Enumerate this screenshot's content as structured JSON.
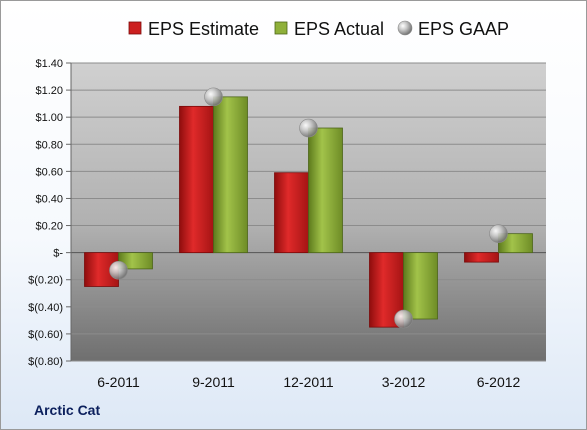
{
  "company_label": "Arctic Cat",
  "chart_data": {
    "type": "bar",
    "title": "",
    "xlabel": "",
    "ylabel": "",
    "categories": [
      "6-2011",
      "9-2011",
      "12-2011",
      "3-2012",
      "6-2012"
    ],
    "series": [
      {
        "name": "EPS Estimate",
        "kind": "bar",
        "color": "#cc1f1f",
        "values": [
          -0.25,
          1.08,
          0.59,
          -0.55,
          -0.07
        ]
      },
      {
        "name": "EPS Actual",
        "kind": "bar",
        "color": "#8fb03a",
        "values": [
          -0.12,
          1.15,
          0.92,
          -0.49,
          0.14
        ]
      },
      {
        "name": "EPS GAAP",
        "kind": "marker",
        "color": "#b8b8b8",
        "values": [
          -0.13,
          1.15,
          0.92,
          -0.49,
          0.14
        ]
      }
    ],
    "y_ticks": [
      {
        "value": 1.4,
        "label": "$1.40"
      },
      {
        "value": 1.2,
        "label": "$1.20"
      },
      {
        "value": 1.0,
        "label": "$1.00"
      },
      {
        "value": 0.8,
        "label": "$0.80"
      },
      {
        "value": 0.6,
        "label": "$0.60"
      },
      {
        "value": 0.4,
        "label": "$0.40"
      },
      {
        "value": 0.2,
        "label": "$0.20"
      },
      {
        "value": 0.0,
        "label": "$-"
      },
      {
        "value": -0.2,
        "label": "$(0.20)"
      },
      {
        "value": -0.4,
        "label": "$(0.40)"
      },
      {
        "value": -0.6,
        "label": "$(0.60)"
      },
      {
        "value": -0.8,
        "label": "$(0.80)"
      }
    ],
    "ylim": [
      -0.8,
      1.4
    ],
    "grid": true,
    "legend_position": "top"
  }
}
